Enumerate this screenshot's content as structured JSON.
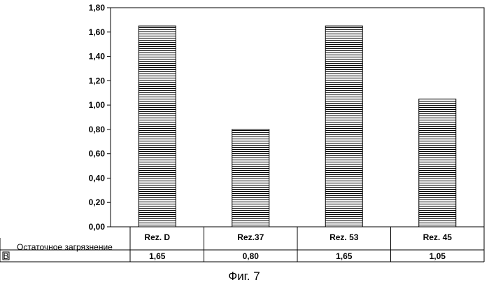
{
  "chart_data": {
    "type": "bar",
    "categories": [
      "Rez. D",
      "Rez.37",
      "Rez. 53",
      "Rez. 45"
    ],
    "series": [
      {
        "name": "Остаточное загрязнение",
        "values": [
          1.65,
          0.8,
          1.65,
          1.05
        ]
      }
    ],
    "value_labels": [
      "1,65",
      "0,80",
      "1,65",
      "1,05"
    ],
    "ylim": [
      0,
      1.8
    ],
    "yticks": [
      0,
      0.2,
      0.4,
      0.6,
      0.8,
      1.0,
      1.2,
      1.4,
      1.6,
      1.8
    ],
    "ytick_labels": [
      "0,00",
      "0,20",
      "0,40",
      "0,60",
      "0,80",
      "1,00",
      "1,20",
      "1,40",
      "1,60",
      "1,80"
    ],
    "bar_pattern": "horizontal-hatch",
    "bar_color": "#000000",
    "grid": false,
    "legend_key_letter": "B"
  },
  "figure_caption": "Фиг. 7"
}
